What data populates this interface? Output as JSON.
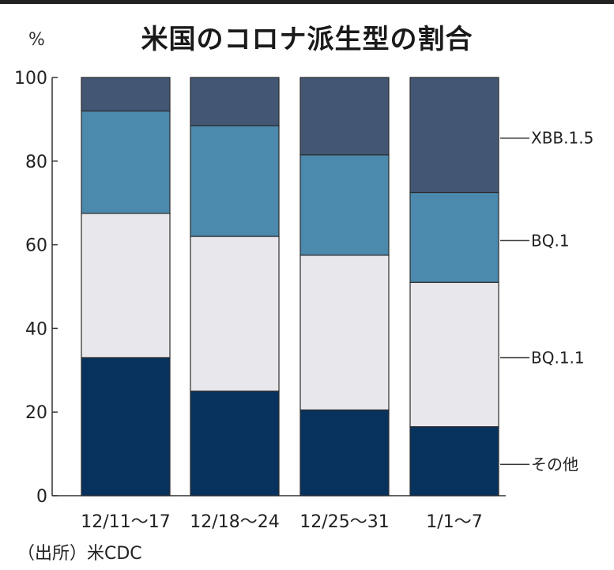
{
  "title": "米国のコロナ派生型の割合",
  "unit_label": "%",
  "source": "（出所）米CDC",
  "colors": {
    "その他": "#08325e",
    "BQ.1.1": "#e7e7ec",
    "BQ.1": "#4b89ad",
    "XBB.1.5": "#435774",
    "axis": "#333333"
  },
  "chart_data": {
    "type": "bar",
    "stacked": true,
    "categories": [
      "12/11〜17",
      "12/18〜24",
      "12/25〜31",
      "1/1〜7"
    ],
    "series": [
      {
        "name": "その他",
        "values": [
          33,
          25,
          20.5,
          16.5
        ]
      },
      {
        "name": "BQ.1.1",
        "values": [
          34.5,
          37,
          37,
          34.5
        ]
      },
      {
        "name": "BQ.1",
        "values": [
          24.5,
          26.5,
          24,
          21.5
        ]
      },
      {
        "name": "XBB.1.5",
        "values": [
          8,
          11.5,
          18.5,
          27.5
        ]
      }
    ],
    "ylim": [
      0,
      100
    ],
    "yticks": [
      0,
      20,
      40,
      60,
      80,
      100
    ],
    "grid": false,
    "legend_position": "right"
  }
}
